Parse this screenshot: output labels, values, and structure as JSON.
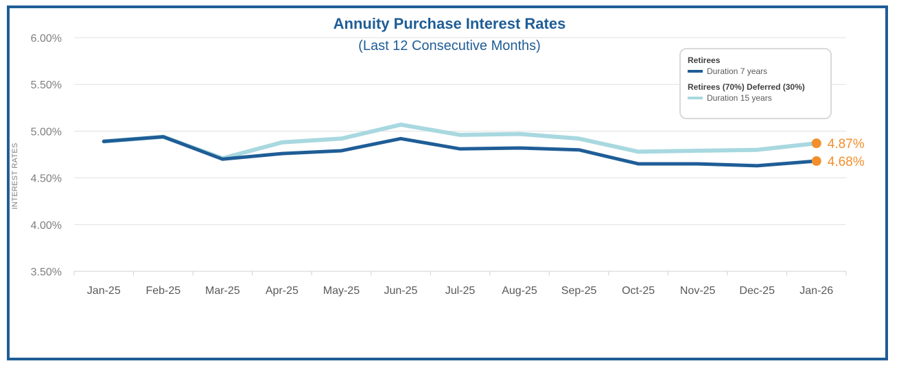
{
  "chart_data": {
    "type": "line",
    "title": "Annuity Purchase Interest Rates",
    "subtitle": "(Last 12 Consecutive Months)",
    "xlabel": "",
    "ylabel": "INTEREST RATES",
    "ylim": [
      3.5,
      6.0
    ],
    "yticks": [
      "3.50%",
      "4.00%",
      "4.50%",
      "5.00%",
      "5.50%",
      "6.00%"
    ],
    "ytick_values": [
      3.5,
      4.0,
      4.5,
      5.0,
      5.5,
      6.0
    ],
    "categories": [
      "Jan-25",
      "Feb-25",
      "Mar-25",
      "Apr-25",
      "May-25",
      "Jun-25",
      "Jul-25",
      "Aug-25",
      "Sep-25",
      "Oct-25",
      "Nov-25",
      "Dec-25",
      "Jan-26"
    ],
    "series": [
      {
        "name": "Duration 7 years",
        "group": "Retirees",
        "color": "#1f5d96",
        "values": [
          4.89,
          4.94,
          4.7,
          4.76,
          4.79,
          4.92,
          4.81,
          4.82,
          4.8,
          4.65,
          4.65,
          4.63,
          4.68
        ],
        "end_label": "4.68%"
      },
      {
        "name": "Duration 15 years",
        "group": "Retirees (70%) Deferred (30%)",
        "color": "#a8d8e0",
        "values": [
          4.89,
          4.94,
          4.71,
          4.88,
          4.92,
          5.07,
          4.96,
          4.97,
          4.92,
          4.78,
          4.79,
          4.8,
          4.87
        ],
        "end_label": "4.87%"
      }
    ],
    "end_marker_color": "#f28e2b",
    "grid": true,
    "legend_position": "top-right"
  }
}
